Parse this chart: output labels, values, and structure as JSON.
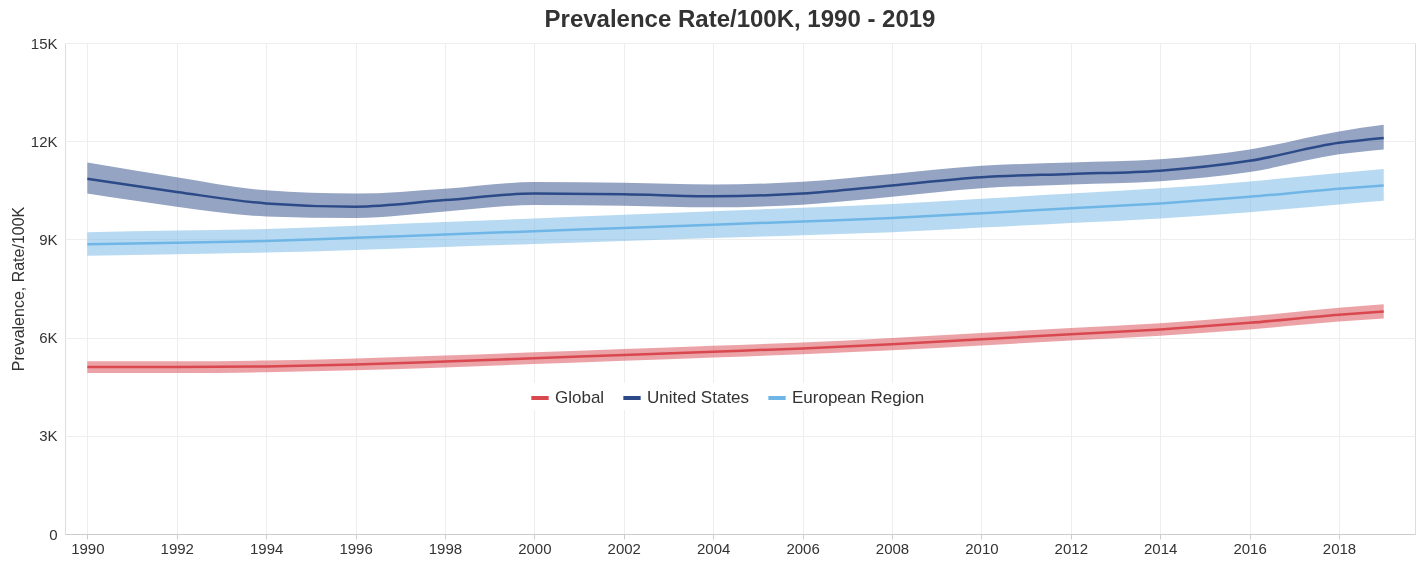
{
  "chart_data": {
    "type": "line",
    "title": "Prevalence Rate/100K, 1990 - 2019",
    "ylabel": "Prevalence, Rate/100K",
    "x": [
      1990,
      1992,
      1994,
      1996,
      1998,
      2000,
      2002,
      2004,
      2006,
      2008,
      2010,
      2012,
      2014,
      2016,
      2018,
      2019
    ],
    "series": [
      {
        "name": "Global",
        "color": "#d9474f",
        "values": [
          5100,
          5100,
          5120,
          5180,
          5270,
          5370,
          5470,
          5570,
          5670,
          5800,
          5950,
          6100,
          6250,
          6450,
          6700,
          6800
        ],
        "lower": [
          4920,
          4920,
          4940,
          5000,
          5090,
          5190,
          5290,
          5390,
          5490,
          5610,
          5760,
          5910,
          6060,
          6250,
          6490,
          6580
        ],
        "upper": [
          5280,
          5280,
          5300,
          5360,
          5450,
          5550,
          5650,
          5750,
          5850,
          5990,
          6140,
          6290,
          6440,
          6650,
          6910,
          7020
        ]
      },
      {
        "name": "United States",
        "color": "#2c4a87",
        "values": [
          10850,
          10450,
          10100,
          10000,
          10200,
          10400,
          10380,
          10320,
          10400,
          10650,
          10900,
          11000,
          11100,
          11400,
          11950,
          12100
        ],
        "lower": [
          10400,
          10000,
          9700,
          9650,
          9850,
          10050,
          10030,
          9980,
          10060,
          10300,
          10560,
          10680,
          10780,
          11060,
          11600,
          11750
        ],
        "upper": [
          11350,
          10900,
          10500,
          10400,
          10550,
          10750,
          10730,
          10680,
          10760,
          11000,
          11250,
          11350,
          11450,
          11750,
          12300,
          12500
        ]
      },
      {
        "name": "European Region",
        "color": "#6fb6e6",
        "values": [
          8850,
          8900,
          8950,
          9050,
          9150,
          9250,
          9350,
          9450,
          9550,
          9650,
          9800,
          9950,
          10100,
          10300,
          10550,
          10650
        ],
        "lower": [
          8500,
          8550,
          8600,
          8680,
          8770,
          8860,
          8950,
          9040,
          9130,
          9220,
          9360,
          9500,
          9640,
          9830,
          10070,
          10180
        ],
        "upper": [
          9220,
          9270,
          9320,
          9420,
          9530,
          9640,
          9750,
          9860,
          9970,
          10080,
          10240,
          10400,
          10560,
          10770,
          11030,
          11150
        ]
      }
    ],
    "xlim": [
      1989.5,
      2019.7
    ],
    "xticks": [
      1990,
      1992,
      1994,
      1996,
      1998,
      2000,
      2002,
      2004,
      2006,
      2008,
      2010,
      2012,
      2014,
      2016,
      2018
    ],
    "ylim": [
      0,
      15000
    ],
    "yticks": [
      0,
      {
        "value": 3000,
        "label": "3K"
      },
      {
        "value": 6000,
        "label": "6K"
      },
      {
        "value": 9000,
        "label": "9K"
      },
      {
        "value": 12000,
        "label": "12K"
      },
      {
        "value": 15000,
        "label": "15K"
      }
    ],
    "grid": true,
    "legend": "bottom",
    "line_style": "solid",
    "marker": "none"
  }
}
